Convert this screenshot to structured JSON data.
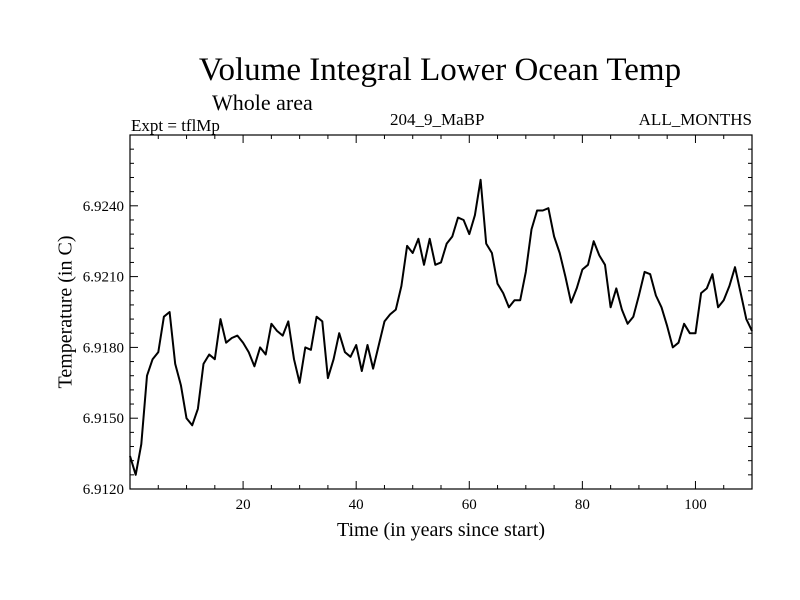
{
  "chart_data": {
    "type": "line",
    "title": "Volume Integral Lower Ocean Temp",
    "subtitle": "Whole area",
    "experiment": "Expt = tflMp",
    "run_label": "204_9_MaBP",
    "period_label": "ALL_MONTHS",
    "xlabel": "Time (in years since start)",
    "ylabel": "Temperature (in C)",
    "xlim": [
      0,
      110
    ],
    "ylim": [
      6.912,
      6.927
    ],
    "x_ticks": [
      20,
      40,
      60,
      80,
      100
    ],
    "y_ticks": [
      6.912,
      6.915,
      6.918,
      6.921,
      6.924
    ],
    "x_tick_labels": [
      "20",
      "40",
      "60",
      "80",
      "100"
    ],
    "y_tick_labels": [
      "6.9120",
      "6.9150",
      "6.9180",
      "6.9210",
      "6.9240"
    ],
    "grid": false,
    "series": [
      {
        "name": "Temperature",
        "x": [
          0,
          1,
          2,
          3,
          4,
          5,
          6,
          7,
          8,
          9,
          10,
          11,
          12,
          13,
          14,
          15,
          16,
          17,
          18,
          19,
          20,
          21,
          22,
          23,
          24,
          25,
          26,
          27,
          28,
          29,
          30,
          31,
          32,
          33,
          34,
          35,
          36,
          37,
          38,
          39,
          40,
          41,
          42,
          43,
          44,
          45,
          46,
          47,
          48,
          49,
          50,
          51,
          52,
          53,
          54,
          55,
          56,
          57,
          58,
          59,
          60,
          61,
          62,
          63,
          64,
          65,
          66,
          67,
          68,
          69,
          70,
          71,
          72,
          73,
          74,
          75,
          76,
          77,
          78,
          79,
          80,
          81,
          82,
          83,
          84,
          85,
          86,
          87,
          88,
          89,
          90,
          91,
          92,
          93,
          94,
          95,
          96,
          97,
          98,
          99,
          100,
          101,
          102,
          103,
          104,
          105,
          106,
          107,
          108,
          109,
          110
        ],
        "values": [
          6.9134,
          6.9126,
          6.9139,
          6.9168,
          6.9175,
          6.9178,
          6.9193,
          6.9195,
          6.9173,
          6.9164,
          6.915,
          6.9147,
          6.9154,
          6.9173,
          6.9177,
          6.9175,
          6.9192,
          6.9182,
          6.9184,
          6.9185,
          6.9182,
          6.9178,
          6.9172,
          6.918,
          6.9177,
          6.919,
          6.9187,
          6.9185,
          6.9191,
          6.9175,
          6.9165,
          6.918,
          6.9179,
          6.9193,
          6.9191,
          6.9167,
          6.9175,
          6.9186,
          6.9178,
          6.9176,
          6.9181,
          6.917,
          6.9181,
          6.9171,
          6.9181,
          6.9191,
          6.9194,
          6.9196,
          6.9206,
          6.9223,
          6.922,
          6.9226,
          6.9215,
          6.9226,
          6.9215,
          6.9216,
          6.9224,
          6.9227,
          6.9235,
          6.9234,
          6.9228,
          6.9236,
          6.9251,
          6.9224,
          6.922,
          6.9207,
          6.9203,
          6.9197,
          6.92,
          6.92,
          6.9212,
          6.923,
          6.9238,
          6.9238,
          6.9239,
          6.9227,
          6.922,
          6.921,
          6.9199,
          6.9205,
          6.9213,
          6.9215,
          6.9225,
          6.9219,
          6.9215,
          6.9197,
          6.9205,
          6.9196,
          6.919,
          6.9193,
          6.9202,
          6.9212,
          6.9211,
          6.9202,
          6.9197,
          6.9189,
          6.918,
          6.9182,
          6.919,
          6.9186,
          6.9186,
          6.9203,
          6.9205,
          6.9211,
          6.9197,
          6.92,
          6.9206,
          6.9214,
          6.9203,
          6.9192,
          6.9187
        ]
      }
    ]
  }
}
